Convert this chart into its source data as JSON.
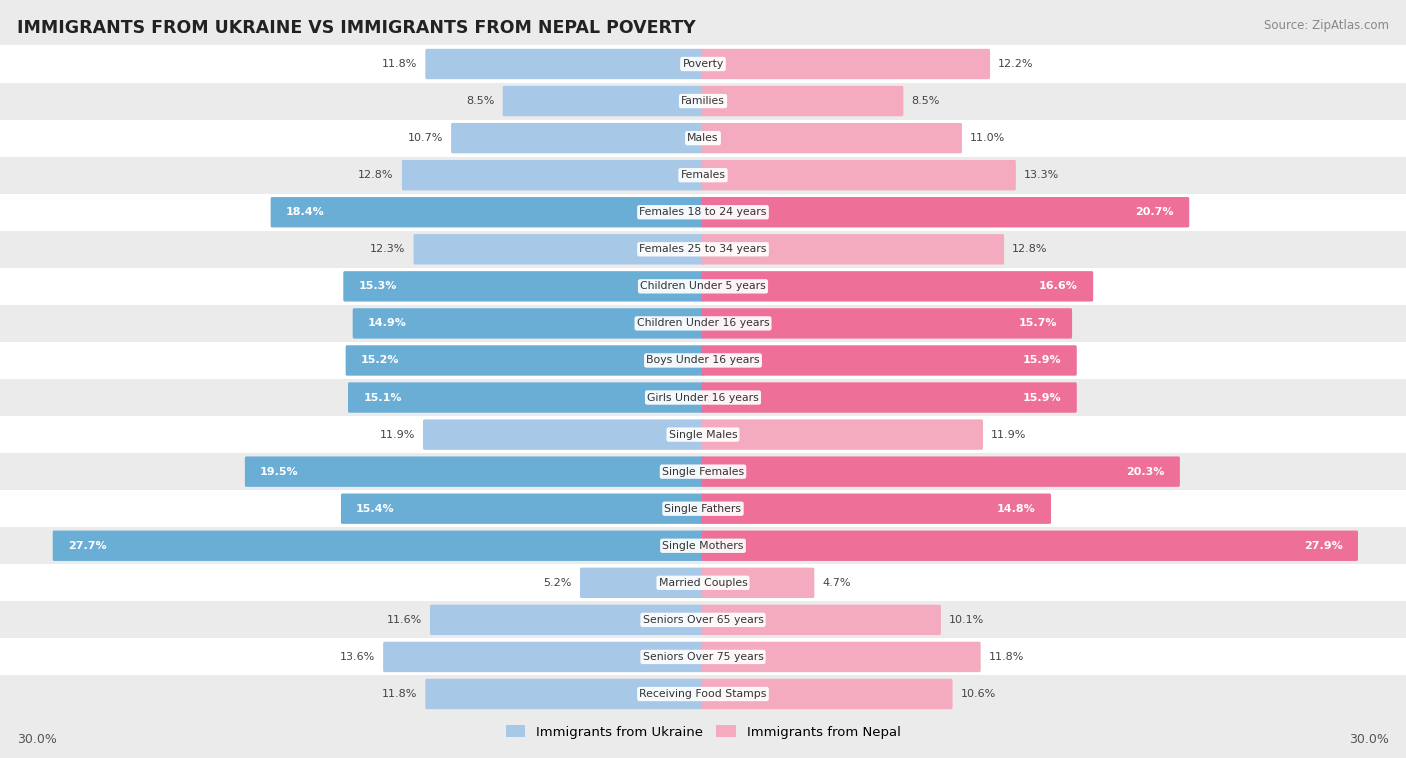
{
  "title": "IMMIGRANTS FROM UKRAINE VS IMMIGRANTS FROM NEPAL POVERTY",
  "source": "Source: ZipAtlas.com",
  "categories": [
    "Poverty",
    "Families",
    "Males",
    "Females",
    "Females 18 to 24 years",
    "Females 25 to 34 years",
    "Children Under 5 years",
    "Children Under 16 years",
    "Boys Under 16 years",
    "Girls Under 16 years",
    "Single Males",
    "Single Females",
    "Single Fathers",
    "Single Mothers",
    "Married Couples",
    "Seniors Over 65 years",
    "Seniors Over 75 years",
    "Receiving Food Stamps"
  ],
  "ukraine_values": [
    11.8,
    8.5,
    10.7,
    12.8,
    18.4,
    12.3,
    15.3,
    14.9,
    15.2,
    15.1,
    11.9,
    19.5,
    15.4,
    27.7,
    5.2,
    11.6,
    13.6,
    11.8
  ],
  "nepal_values": [
    12.2,
    8.5,
    11.0,
    13.3,
    20.7,
    12.8,
    16.6,
    15.7,
    15.9,
    15.9,
    11.9,
    20.3,
    14.8,
    27.9,
    4.7,
    10.1,
    11.8,
    10.6
  ],
  "ukraine_color_normal": "#A8C8E8",
  "ukraine_color_high": "#6AAED6",
  "nepal_color_normal": "#F4AABF",
  "nepal_color_high": "#EE6F97",
  "label_ukraine": "Immigrants from Ukraine",
  "label_nepal": "Immigrants from Nepal",
  "axis_max": 30.0,
  "high_threshold": 14.5,
  "bg_color": "#EBEBEB",
  "row_colors": [
    "#FFFFFF",
    "#EBEBEB"
  ]
}
